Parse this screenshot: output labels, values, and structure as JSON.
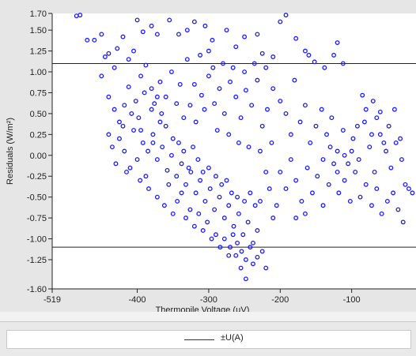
{
  "chart_data": {
    "type": "scatter",
    "xlabel": "Thermopile Voltage (µV)",
    "ylabel": "Residuals (W/m²)",
    "xlim": [
      -519,
      -10
    ],
    "ylim": [
      -1.6,
      1.7
    ],
    "x_ticks": [
      -519,
      -400,
      -300,
      -200,
      -100
    ],
    "y_ticks": [
      1.7,
      1.5,
      1.25,
      1.0,
      0.75,
      0.5,
      0.25,
      0.0,
      -0.25,
      -0.5,
      -0.75,
      -1.0,
      -1.25,
      -1.6
    ],
    "y_tick_labels": [
      "1.70",
      "1.50",
      "1.25",
      "1.00",
      "0.75",
      "0.50",
      "0.25",
      "0.00",
      "-0.25",
      "-0.50",
      "-0.75",
      "-1.00",
      "-1.25",
      "-1.60"
    ],
    "reference_lines": [
      1.1,
      -1.1
    ],
    "marker_color": "#1a1aff",
    "grid": false,
    "legend_position": "bottom",
    "series": [
      {
        "name": "",
        "points": [
          [
            -485,
            1.67
          ],
          [
            -480,
            1.68
          ],
          [
            -470,
            1.38
          ],
          [
            -460,
            1.38
          ],
          [
            -450,
            1.45
          ],
          [
            -445,
            1.18
          ],
          [
            -440,
            1.22
          ],
          [
            -432,
            1.05
          ],
          [
            -428,
            1.28
          ],
          [
            -420,
            1.42
          ],
          [
            -412,
            1.15
          ],
          [
            -405,
            1.25
          ],
          [
            -400,
            1.62
          ],
          [
            -392,
            1.48
          ],
          [
            -380,
            1.55
          ],
          [
            -372,
            1.45
          ],
          [
            -355,
            1.62
          ],
          [
            -342,
            1.45
          ],
          [
            -330,
            1.5
          ],
          [
            -320,
            1.6
          ],
          [
            -305,
            1.55
          ],
          [
            -295,
            1.38
          ],
          [
            -275,
            1.5
          ],
          [
            -262,
            1.3
          ],
          [
            -250,
            1.42
          ],
          [
            -232,
            1.45
          ],
          [
            -225,
            1.22
          ],
          [
            -210,
            1.18
          ],
          [
            -200,
            1.6
          ],
          [
            -192,
            1.68
          ],
          [
            -178,
            1.4
          ],
          [
            -165,
            1.25
          ],
          [
            -160,
            1.2
          ],
          [
            -152,
            1.12
          ],
          [
            -138,
            1.05
          ],
          [
            -125,
            1.2
          ],
          [
            -120,
            1.35
          ],
          [
            -112,
            1.1
          ],
          [
            -85,
            0.72
          ],
          [
            -70,
            0.65
          ],
          [
            -60,
            0.52
          ],
          [
            -450,
            0.95
          ],
          [
            -440,
            0.7
          ],
          [
            -432,
            0.55
          ],
          [
            -425,
            0.4
          ],
          [
            -418,
            0.6
          ],
          [
            -412,
            0.82
          ],
          [
            -405,
            0.3
          ],
          [
            -398,
            0.45
          ],
          [
            -392,
            0.15
          ],
          [
            -385,
            0.05
          ],
          [
            -378,
            0.25
          ],
          [
            -372,
            -0.05
          ],
          [
            -365,
            0.1
          ],
          [
            -358,
            -0.18
          ],
          [
            -352,
            0.0
          ],
          [
            -345,
            -0.25
          ],
          [
            -338,
            -0.1
          ],
          [
            -332,
            -0.35
          ],
          [
            -325,
            -0.2
          ],
          [
            -318,
            -0.45
          ],
          [
            -312,
            -0.3
          ],
          [
            -305,
            -0.55
          ],
          [
            -298,
            -0.4
          ],
          [
            -292,
            -0.65
          ],
          [
            -285,
            -0.5
          ],
          [
            -278,
            -0.75
          ],
          [
            -272,
            -0.6
          ],
          [
            -265,
            -0.85
          ],
          [
            -258,
            -0.7
          ],
          [
            -252,
            -0.95
          ],
          [
            -245,
            -0.8
          ],
          [
            -238,
            -1.05
          ],
          [
            -232,
            -0.9
          ],
          [
            -225,
            -1.15
          ],
          [
            -255,
            -1.35
          ],
          [
            -248,
            -1.48
          ],
          [
            -238,
            -1.3
          ],
          [
            -232,
            -1.22
          ],
          [
            -220,
            -1.35
          ],
          [
            -262,
            -1.2
          ],
          [
            -270,
            -1.1
          ],
          [
            -418,
            0.05
          ],
          [
            -410,
            -0.15
          ],
          [
            -400,
            -0.05
          ],
          [
            -395,
            0.3
          ],
          [
            -388,
            -0.25
          ],
          [
            -380,
            0.55
          ],
          [
            -372,
            0.7
          ],
          [
            -368,
            0.4
          ],
          [
            -360,
            0.35
          ],
          [
            -350,
            0.2
          ],
          [
            -342,
            0.15
          ],
          [
            -335,
            0.05
          ],
          [
            -328,
            -0.15
          ],
          [
            -322,
            0.1
          ],
          [
            -315,
            -0.05
          ],
          [
            -308,
            -0.2
          ],
          [
            -300,
            -0.15
          ],
          [
            -290,
            -0.25
          ],
          [
            -282,
            -0.35
          ],
          [
            -275,
            -0.3
          ],
          [
            -268,
            -0.45
          ],
          [
            -260,
            -0.5
          ],
          [
            -250,
            -0.55
          ],
          [
            -242,
            -0.45
          ],
          [
            -235,
            -0.6
          ],
          [
            -228,
            -0.55
          ],
          [
            -320,
            0.85
          ],
          [
            -310,
            0.72
          ],
          [
            -300,
            0.95
          ],
          [
            -292,
            0.62
          ],
          [
            -285,
            0.8
          ],
          [
            -278,
            0.5
          ],
          [
            -270,
            0.88
          ],
          [
            -262,
            0.7
          ],
          [
            -255,
            0.45
          ],
          [
            -248,
            0.78
          ],
          [
            -240,
            0.6
          ],
          [
            -232,
            0.9
          ],
          [
            -225,
            0.35
          ],
          [
            -218,
            0.55
          ],
          [
            -210,
            0.8
          ],
          [
            -200,
            0.65
          ],
          [
            -192,
            0.5
          ],
          [
            -185,
            0.25
          ],
          [
            -180,
            0.9
          ],
          [
            -172,
            0.4
          ],
          [
            -165,
            0.6
          ],
          [
            -158,
            0.15
          ],
          [
            -150,
            0.35
          ],
          [
            -142,
            0.55
          ],
          [
            -135,
            0.25
          ],
          [
            -128,
            0.45
          ],
          [
            -120,
            0.05
          ],
          [
            -112,
            0.3
          ],
          [
            -105,
            -0.1
          ],
          [
            -98,
            0.2
          ],
          [
            -90,
            -0.05
          ],
          [
            -82,
            0.4
          ],
          [
            -75,
            0.1
          ],
          [
            -68,
            -0.2
          ],
          [
            -60,
            0.25
          ],
          [
            -52,
            0.05
          ],
          [
            -45,
            -0.15
          ],
          [
            -38,
            0.15
          ],
          [
            -30,
            -0.05
          ],
          [
            -25,
            -0.35
          ],
          [
            -20,
            -0.4
          ],
          [
            -15,
            -0.45
          ],
          [
            -200,
            -0.2
          ],
          [
            -192,
            -0.4
          ],
          [
            -185,
            -0.05
          ],
          [
            -178,
            -0.3
          ],
          [
            -170,
            -0.55
          ],
          [
            -162,
            -0.15
          ],
          [
            -155,
            -0.45
          ],
          [
            -148,
            -0.25
          ],
          [
            -140,
            -0.6
          ],
          [
            -132,
            -0.35
          ],
          [
            -125,
            -0.1
          ],
          [
            -118,
            -0.45
          ],
          [
            -110,
            -0.3
          ],
          [
            -102,
            -0.55
          ],
          [
            -95,
            -0.2
          ],
          [
            -88,
            -0.5
          ],
          [
            -80,
            -0.35
          ],
          [
            -72,
            -0.6
          ],
          [
            -65,
            -0.4
          ],
          [
            -58,
            -0.7
          ],
          [
            -50,
            -0.55
          ],
          [
            -42,
            -0.45
          ],
          [
            -35,
            -0.65
          ],
          [
            -28,
            -0.8
          ],
          [
            -178,
            -0.75
          ],
          [
            -165,
            -0.7
          ],
          [
            -210,
            -0.75
          ],
          [
            -205,
            -0.6
          ],
          [
            -215,
            -0.4
          ],
          [
            -220,
            -0.2
          ],
          [
            -140,
            -0.05
          ],
          [
            -130,
            0.1
          ],
          [
            -120,
            -0.2
          ],
          [
            -110,
            0.0
          ],
          [
            -100,
            0.05
          ],
          [
            -92,
            0.35
          ],
          [
            -80,
            0.55
          ],
          [
            -72,
            0.25
          ],
          [
            -65,
            0.45
          ],
          [
            -55,
            0.15
          ],
          [
            -48,
            0.35
          ],
          [
            -40,
            0.55
          ],
          [
            -32,
            0.2
          ],
          [
            -395,
            0.95
          ],
          [
            -388,
            1.08
          ],
          [
            -380,
            0.8
          ],
          [
            -376,
            0.62
          ],
          [
            -368,
            0.88
          ],
          [
            -360,
            0.7
          ],
          [
            -352,
            1.0
          ],
          [
            -345,
            0.62
          ],
          [
            -340,
            0.85
          ],
          [
            -335,
            0.45
          ],
          [
            -330,
            1.15
          ],
          [
            -326,
            0.6
          ],
          [
            -318,
            0.4
          ],
          [
            -312,
            1.2
          ],
          [
            -306,
            0.55
          ],
          [
            -300,
            1.25
          ],
          [
            -294,
            1.05
          ],
          [
            -288,
            0.3
          ],
          [
            -280,
            1.1
          ],
          [
            -272,
            0.25
          ],
          [
            -266,
            1.05
          ],
          [
            -258,
            0.15
          ],
          [
            -250,
            1.0
          ],
          [
            -244,
            0.1
          ],
          [
            -236,
            1.1
          ],
          [
            -228,
            0.05
          ],
          [
            -220,
            1.05
          ],
          [
            -212,
            0.15
          ],
          [
            -440,
            0.25
          ],
          [
            -435,
            0.1
          ],
          [
            -430,
            -0.1
          ],
          [
            -425,
            0.2
          ],
          [
            -420,
            0.35
          ],
          [
            -415,
            -0.2
          ],
          [
            -408,
            0.5
          ],
          [
            -402,
            0.65
          ],
          [
            -396,
            -0.3
          ],
          [
            -390,
            0.75
          ],
          [
            -384,
            -0.4
          ],
          [
            -378,
            0.15
          ],
          [
            -372,
            -0.5
          ],
          [
            -366,
            0.5
          ],
          [
            -362,
            -0.6
          ],
          [
            -356,
            -0.35
          ],
          [
            -350,
            -0.7
          ],
          [
            -344,
            -0.55
          ],
          [
            -338,
            -0.45
          ],
          [
            -332,
            -0.75
          ],
          [
            -326,
            -0.65
          ],
          [
            -320,
            -0.85
          ],
          [
            -314,
            -0.7
          ],
          [
            -308,
            -0.9
          ],
          [
            -302,
            -0.8
          ],
          [
            -296,
            -1.0
          ],
          [
            -290,
            -0.95
          ],
          [
            -284,
            -1.1
          ],
          [
            -278,
            -1.0
          ],
          [
            -272,
            -1.2
          ],
          [
            -266,
            -0.95
          ],
          [
            -260,
            -1.05
          ],
          [
            -254,
            -1.15
          ],
          [
            -248,
            -1.25
          ],
          [
            -242,
            -1.1
          ]
        ]
      }
    ]
  },
  "legend": {
    "label": "±U(A)"
  }
}
